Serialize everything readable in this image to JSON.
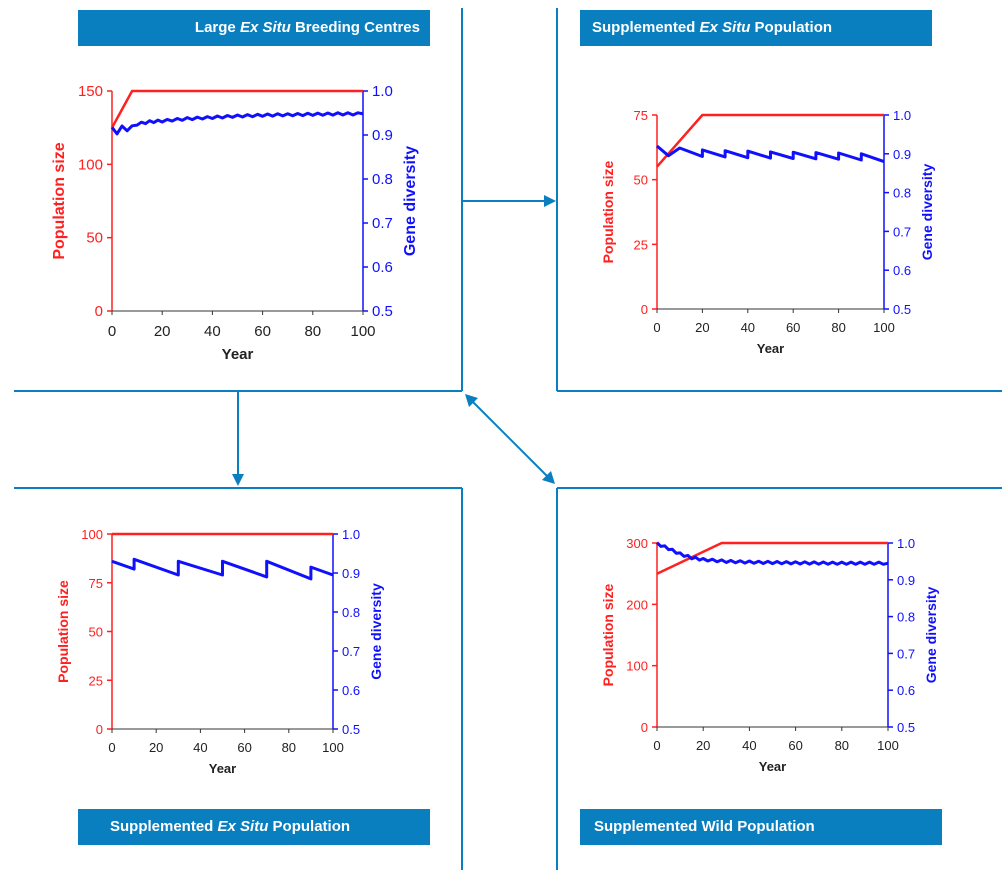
{
  "banners": {
    "top_left": {
      "pre": "Large ",
      "em": "Ex Situ",
      "post": " Breeding Centres"
    },
    "top_right": {
      "pre": "Supplemented ",
      "em": "Ex Situ",
      "post": " Population"
    },
    "bottom_left": {
      "pre": "Supplemented ",
      "em": "Ex Situ",
      "post": " Population"
    },
    "bottom_right": {
      "pre": "Supplemented Wild Population",
      "em": "",
      "post": ""
    }
  },
  "colors": {
    "population": "#ff2020",
    "diversity": "#1010ff",
    "accent": "#0a7fc0"
  },
  "chart_data": [
    {
      "type": "line",
      "x": [
        0,
        10,
        20,
        30,
        40,
        50,
        60,
        70,
        80,
        90,
        100
      ],
      "xlabel": "Year",
      "ylabel": "Population size",
      "y2label": "Gene diversity",
      "xlim": [
        0,
        100
      ],
      "ylim": [
        0,
        150
      ],
      "y2lim": [
        0.5,
        1.0
      ],
      "xticks": [
        "0",
        "20",
        "40",
        "60",
        "80",
        "100"
      ],
      "yticks": [
        "0",
        "50",
        "100",
        "150"
      ],
      "y2ticks": [
        "0.5",
        "0.6",
        "0.7",
        "0.8",
        "0.9",
        "1.0"
      ],
      "series": [
        {
          "axis": "left",
          "color": "#ff2020",
          "points": [
            [
              0,
              125
            ],
            [
              8,
              150
            ],
            [
              100,
              150
            ]
          ]
        },
        {
          "axis": "right",
          "color": "#1010ff",
          "points": [
            [
              0,
              0.915
            ],
            [
              2,
              0.905
            ],
            [
              4,
              0.918
            ],
            [
              6,
              0.912
            ],
            [
              10,
              0.925
            ],
            [
              15,
              0.93
            ],
            [
              20,
              0.932
            ],
            [
              30,
              0.937
            ],
            [
              40,
              0.94
            ],
            [
              50,
              0.943
            ],
            [
              60,
              0.945
            ],
            [
              70,
              0.946
            ],
            [
              80,
              0.947
            ],
            [
              90,
              0.948
            ],
            [
              100,
              0.948
            ]
          ],
          "sawtooth_amplitude": 0.005
        }
      ]
    },
    {
      "type": "line",
      "x": [
        0,
        10,
        20,
        30,
        40,
        50,
        60,
        70,
        80,
        90,
        100
      ],
      "xlabel": "Year",
      "ylabel": "Population size",
      "y2label": "Gene diversity",
      "xlim": [
        0,
        100
      ],
      "ylim": [
        0,
        75
      ],
      "y2lim": [
        0.5,
        1.0
      ],
      "xticks": [
        "0",
        "20",
        "40",
        "60",
        "80",
        "100"
      ],
      "yticks": [
        "0",
        "25",
        "50",
        "75"
      ],
      "y2ticks": [
        "0.5",
        "0.6",
        "0.7",
        "0.8",
        "0.9",
        "1.0"
      ],
      "series": [
        {
          "axis": "left",
          "color": "#ff2020",
          "points": [
            [
              0,
              55
            ],
            [
              20,
              75
            ],
            [
              100,
              75
            ]
          ]
        },
        {
          "axis": "right",
          "color": "#1010ff",
          "points": [
            [
              0,
              0.92
            ],
            [
              5,
              0.895
            ],
            [
              10,
              0.915
            ],
            [
              20,
              0.893
            ],
            [
              20,
              0.91
            ],
            [
              30,
              0.892
            ],
            [
              30,
              0.908
            ],
            [
              40,
              0.89
            ],
            [
              40,
              0.907
            ],
            [
              50,
              0.889
            ],
            [
              50,
              0.905
            ],
            [
              60,
              0.888
            ],
            [
              60,
              0.904
            ],
            [
              70,
              0.887
            ],
            [
              70,
              0.903
            ],
            [
              80,
              0.886
            ],
            [
              80,
              0.902
            ],
            [
              90,
              0.884
            ],
            [
              90,
              0.9
            ],
            [
              100,
              0.88
            ]
          ]
        }
      ]
    },
    {
      "type": "line",
      "x": [
        0,
        10,
        20,
        30,
        40,
        50,
        60,
        70,
        80,
        90,
        100
      ],
      "xlabel": "Year",
      "ylabel": "Population size",
      "y2label": "Gene diversity",
      "xlim": [
        0,
        100
      ],
      "ylim": [
        0,
        100
      ],
      "y2lim": [
        0.5,
        1.0
      ],
      "xticks": [
        "0",
        "20",
        "40",
        "60",
        "80",
        "100"
      ],
      "yticks": [
        "0",
        "25",
        "50",
        "75",
        "100"
      ],
      "y2ticks": [
        "0.5",
        "0.6",
        "0.7",
        "0.8",
        "0.9",
        "1.0"
      ],
      "series": [
        {
          "axis": "left",
          "color": "#ff2020",
          "points": [
            [
              0,
              100
            ],
            [
              100,
              100
            ]
          ]
        },
        {
          "axis": "right",
          "color": "#1010ff",
          "points": [
            [
              0,
              0.93
            ],
            [
              10,
              0.91
            ],
            [
              10,
              0.935
            ],
            [
              30,
              0.895
            ],
            [
              30,
              0.93
            ],
            [
              50,
              0.895
            ],
            [
              50,
              0.93
            ],
            [
              70,
              0.89
            ],
            [
              70,
              0.93
            ],
            [
              90,
              0.885
            ],
            [
              90,
              0.915
            ],
            [
              100,
              0.895
            ]
          ]
        }
      ]
    },
    {
      "type": "line",
      "x": [
        0,
        10,
        20,
        30,
        40,
        50,
        60,
        70,
        80,
        90,
        100
      ],
      "xlabel": "Year",
      "ylabel": "Population size",
      "y2label": "Gene diversity",
      "xlim": [
        0,
        100
      ],
      "ylim": [
        0,
        300
      ],
      "y2lim": [
        0.5,
        1.0
      ],
      "xticks": [
        "0",
        "20",
        "40",
        "60",
        "80",
        "100"
      ],
      "yticks": [
        "0",
        "100",
        "200",
        "300"
      ],
      "y2ticks": [
        "0.5",
        "0.6",
        "0.7",
        "0.8",
        "0.9",
        "1.0"
      ],
      "series": [
        {
          "axis": "left",
          "color": "#ff2020",
          "points": [
            [
              0,
              250
            ],
            [
              28,
              300
            ],
            [
              100,
              300
            ]
          ]
        },
        {
          "axis": "right",
          "color": "#1010ff",
          "points": [
            [
              0,
              0.998
            ],
            [
              5,
              0.985
            ],
            [
              10,
              0.97
            ],
            [
              15,
              0.96
            ],
            [
              20,
              0.955
            ],
            [
              30,
              0.95
            ],
            [
              40,
              0.948
            ],
            [
              60,
              0.946
            ],
            [
              80,
              0.945
            ],
            [
              100,
              0.945
            ]
          ],
          "sawtooth_amplitude": 0.006
        }
      ]
    }
  ]
}
